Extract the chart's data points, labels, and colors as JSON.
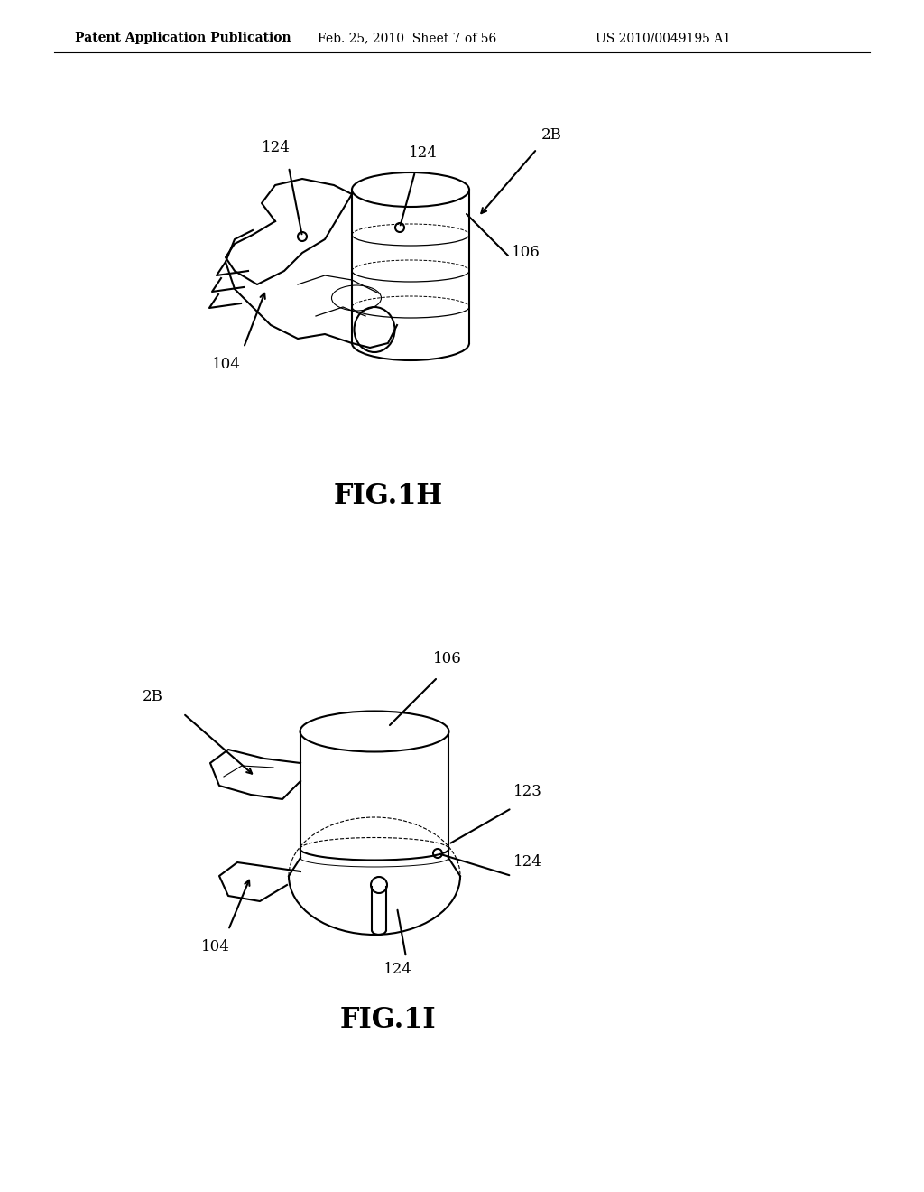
{
  "bg_color": "#ffffff",
  "text_color": "#000000",
  "header_left": "Patent Application Publication",
  "header_center": "Feb. 25, 2010  Sheet 7 of 56",
  "header_right": "US 2010/0049195 A1",
  "fig1h_label": "FIG.1H",
  "fig1i_label": "FIG.1I",
  "line_color": "#000000",
  "line_width": 1.5,
  "fig_label_fontsize": 22,
  "header_fontsize": 10,
  "annotation_fontsize": 12
}
